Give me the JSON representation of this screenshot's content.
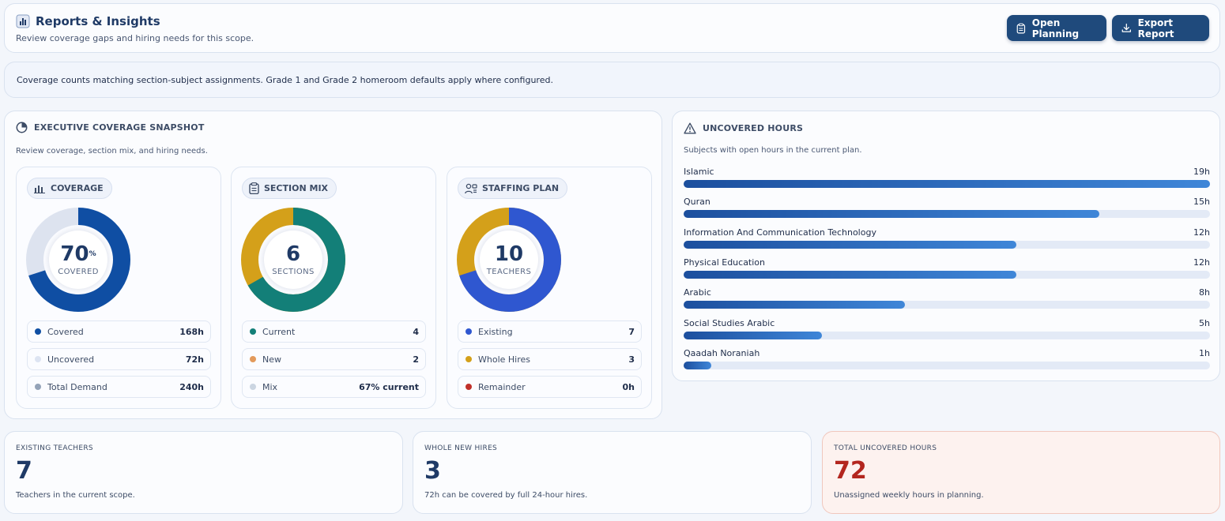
{
  "header": {
    "title": "Reports & Insights",
    "subtitle": "Review coverage gaps and hiring needs for this scope.",
    "open_planning": "Open Planning",
    "export_report": "Export Report"
  },
  "info": "Coverage counts matching section-subject assignments. Grade 1 and Grade 2 homeroom defaults apply where configured.",
  "snapshot": {
    "title": "EXECUTIVE COVERAGE SNAPSHOT",
    "subtitle": "Review coverage, section mix, and hiring needs.",
    "coverage": {
      "label": "COVERAGE",
      "value": "70",
      "unit": "%",
      "center_label": "COVERED",
      "fraction": 0.7,
      "colors": [
        "#0f4ea3",
        "#dde3ef"
      ],
      "legend": [
        {
          "label": "Covered",
          "value": "168h",
          "color": "#0f4ea3"
        },
        {
          "label": "Uncovered",
          "value": "72h",
          "color": "#dde4f2"
        },
        {
          "label": "Total Demand",
          "value": "240h",
          "color": "#94a3b8"
        }
      ]
    },
    "section_mix": {
      "label": "SECTION MIX",
      "value": "6",
      "center_label": "SECTIONS",
      "fraction": 0.667,
      "colors": [
        "#137f78",
        "#d4a01a"
      ],
      "legend": [
        {
          "label": "Current",
          "value": "4",
          "color": "#137f78"
        },
        {
          "label": "New",
          "value": "2",
          "color": "#e39a5b"
        },
        {
          "label": "Mix",
          "value": "67% current",
          "color": "#cbd5e1"
        }
      ]
    },
    "staffing": {
      "label": "STAFFING PLAN",
      "value": "10",
      "center_label": "TEACHERS",
      "fraction": 0.7,
      "colors": [
        "#2f57d0",
        "#d4a01a"
      ],
      "legend": [
        {
          "label": "Existing",
          "value": "7",
          "color": "#2f57d0"
        },
        {
          "label": "Whole Hires",
          "value": "3",
          "color": "#d4a01a"
        },
        {
          "label": "Remainder",
          "value": "0h",
          "color": "#c0302a"
        }
      ]
    }
  },
  "uncovered": {
    "title": "UNCOVERED HOURS",
    "subtitle": "Subjects with open hours in the current plan.",
    "max_hours": 19,
    "rows": [
      {
        "name": "Islamic",
        "hours": 19,
        "label": "19h"
      },
      {
        "name": "Quran",
        "hours": 15,
        "label": "15h"
      },
      {
        "name": "Information And Communication Technology",
        "hours": 12,
        "label": "12h"
      },
      {
        "name": "Physical Education",
        "hours": 12,
        "label": "12h"
      },
      {
        "name": "Arabic",
        "hours": 8,
        "label": "8h"
      },
      {
        "name": "Social Studies Arabic",
        "hours": 5,
        "label": "5h"
      },
      {
        "name": "Qaadah Noraniah",
        "hours": 1,
        "label": "1h"
      }
    ]
  },
  "kpis": {
    "teachers": {
      "label": "EXISTING TEACHERS",
      "value": "7",
      "sub": "Teachers in the current scope."
    },
    "hires": {
      "label": "WHOLE NEW HIRES",
      "value": "3",
      "sub": "72h can be covered by full 24-hour hires."
    },
    "hours": {
      "label": "TOTAL UNCOVERED HOURS",
      "value": "72",
      "sub": "Unassigned weekly hours in planning."
    }
  }
}
